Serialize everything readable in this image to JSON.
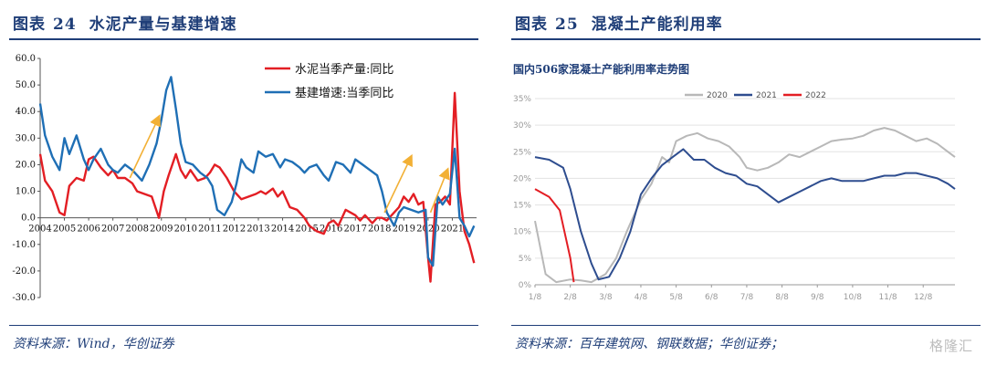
{
  "left_panel": {
    "figure_label": "图表",
    "figure_number": "24",
    "title": "水泥产量与基建增速",
    "source": "资料来源：Wind，华创证券"
  },
  "right_panel": {
    "figure_label": "图表",
    "figure_number": "25",
    "title": "混凝土产能利用率",
    "source": "资料来源：百年建筑网、钢联数据；华创证券；"
  },
  "watermark": "格隆汇",
  "colors": {
    "title_blue": "#1f3e78",
    "red": "#e31e24",
    "blue": "#1f6fb5",
    "gray": "#b8b8b8",
    "navy": "#2e4d8f",
    "arrow": "#f2b035"
  },
  "chart_data": [
    {
      "type": "line",
      "ylim": [
        -30,
        60
      ],
      "yticks": [
        "60.0",
        "50.0",
        "40.0",
        "30.0",
        "20.0",
        "10.0",
        "0.0",
        "-10.0",
        "-20.0",
        "-30.0"
      ],
      "xticks": [
        "2004",
        "2005",
        "2006",
        "2007",
        "2008",
        "2009",
        "2010",
        "2011",
        "2012",
        "2013",
        "2014",
        "2015",
        "2016",
        "2017",
        "2018",
        "2019",
        "2020",
        "2021"
      ],
      "xlim": [
        2004.0,
        2022.0
      ],
      "annotations": [
        "arrow-2008-2009",
        "arrow-2018-2019",
        "arrow-2020-2021"
      ],
      "legend_position": "top-right",
      "series": [
        {
          "name": "水泥当季产量:同比",
          "color": "#e31e24",
          "points": [
            [
              2004.0,
              24
            ],
            [
              2004.2,
              14
            ],
            [
              2004.5,
              10
            ],
            [
              2004.8,
              2
            ],
            [
              2005.0,
              1
            ],
            [
              2005.2,
              12
            ],
            [
              2005.5,
              15
            ],
            [
              2005.8,
              14
            ],
            [
              2006.0,
              22
            ],
            [
              2006.2,
              23
            ],
            [
              2006.5,
              19
            ],
            [
              2006.8,
              16
            ],
            [
              2007.0,
              18
            ],
            [
              2007.2,
              15
            ],
            [
              2007.5,
              15
            ],
            [
              2007.8,
              13
            ],
            [
              2008.0,
              10
            ],
            [
              2008.3,
              9
            ],
            [
              2008.6,
              8
            ],
            [
              2008.9,
              0
            ],
            [
              2009.1,
              10
            ],
            [
              2009.3,
              16
            ],
            [
              2009.6,
              24
            ],
            [
              2009.8,
              18
            ],
            [
              2010.0,
              15
            ],
            [
              2010.2,
              18
            ],
            [
              2010.5,
              14
            ],
            [
              2010.8,
              15
            ],
            [
              2011.0,
              17
            ],
            [
              2011.2,
              20
            ],
            [
              2011.4,
              19
            ],
            [
              2011.7,
              15
            ],
            [
              2012.0,
              10
            ],
            [
              2012.3,
              7
            ],
            [
              2012.6,
              8
            ],
            [
              2012.9,
              9
            ],
            [
              2013.1,
              10
            ],
            [
              2013.3,
              9
            ],
            [
              2013.6,
              11
            ],
            [
              2013.8,
              8
            ],
            [
              2014.0,
              10
            ],
            [
              2014.3,
              4
            ],
            [
              2014.6,
              3
            ],
            [
              2014.9,
              0
            ],
            [
              2015.1,
              -3
            ],
            [
              2015.4,
              -5
            ],
            [
              2015.7,
              -6
            ],
            [
              2015.9,
              -2
            ],
            [
              2016.1,
              -1
            ],
            [
              2016.3,
              -3
            ],
            [
              2016.6,
              3
            ],
            [
              2016.8,
              2
            ],
            [
              2017.0,
              1
            ],
            [
              2017.2,
              -1
            ],
            [
              2017.4,
              1
            ],
            [
              2017.7,
              -2
            ],
            [
              2017.9,
              0
            ],
            [
              2018.1,
              0
            ],
            [
              2018.3,
              -1
            ],
            [
              2018.6,
              2
            ],
            [
              2018.8,
              4
            ],
            [
              2019.0,
              8
            ],
            [
              2019.2,
              6
            ],
            [
              2019.4,
              9
            ],
            [
              2019.6,
              5
            ],
            [
              2019.8,
              6
            ],
            [
              2020.0,
              -15
            ],
            [
              2020.1,
              -24
            ],
            [
              2020.3,
              5
            ],
            [
              2020.5,
              6
            ],
            [
              2020.7,
              8
            ],
            [
              2020.9,
              5
            ],
            [
              2021.1,
              47
            ],
            [
              2021.3,
              10
            ],
            [
              2021.5,
              -5
            ],
            [
              2021.7,
              -10
            ],
            [
              2021.9,
              -17
            ]
          ]
        },
        {
          "name": "基建增速:当季同比",
          "color": "#1f6fb5",
          "points": [
            [
              2004.0,
              43
            ],
            [
              2004.2,
              31
            ],
            [
              2004.5,
              23
            ],
            [
              2004.8,
              18
            ],
            [
              2005.0,
              30
            ],
            [
              2005.2,
              24
            ],
            [
              2005.5,
              31
            ],
            [
              2005.8,
              22
            ],
            [
              2006.0,
              18
            ],
            [
              2006.2,
              22
            ],
            [
              2006.5,
              26
            ],
            [
              2006.8,
              20
            ],
            [
              2007.0,
              18
            ],
            [
              2007.2,
              17
            ],
            [
              2007.5,
              20
            ],
            [
              2007.8,
              18
            ],
            [
              2008.0,
              16
            ],
            [
              2008.2,
              14
            ],
            [
              2008.5,
              20
            ],
            [
              2008.8,
              28
            ],
            [
              2009.0,
              37
            ],
            [
              2009.2,
              48
            ],
            [
              2009.4,
              53
            ],
            [
              2009.6,
              41
            ],
            [
              2009.8,
              28
            ],
            [
              2010.0,
              21
            ],
            [
              2010.3,
              20
            ],
            [
              2010.6,
              17
            ],
            [
              2010.9,
              15
            ],
            [
              2011.1,
              12
            ],
            [
              2011.3,
              3
            ],
            [
              2011.6,
              1
            ],
            [
              2011.9,
              6
            ],
            [
              2012.1,
              13
            ],
            [
              2012.3,
              22
            ],
            [
              2012.5,
              19
            ],
            [
              2012.8,
              17
            ],
            [
              2013.0,
              25
            ],
            [
              2013.3,
              23
            ],
            [
              2013.6,
              24
            ],
            [
              2013.9,
              19
            ],
            [
              2014.1,
              22
            ],
            [
              2014.4,
              21
            ],
            [
              2014.7,
              19
            ],
            [
              2014.9,
              17
            ],
            [
              2015.1,
              19
            ],
            [
              2015.4,
              20
            ],
            [
              2015.7,
              16
            ],
            [
              2015.9,
              14
            ],
            [
              2016.2,
              21
            ],
            [
              2016.5,
              20
            ],
            [
              2016.8,
              17
            ],
            [
              2017.0,
              22
            ],
            [
              2017.3,
              20
            ],
            [
              2017.6,
              18
            ],
            [
              2017.9,
              16
            ],
            [
              2018.1,
              10
            ],
            [
              2018.3,
              2
            ],
            [
              2018.6,
              -3
            ],
            [
              2018.8,
              2
            ],
            [
              2019.0,
              4
            ],
            [
              2019.3,
              3
            ],
            [
              2019.6,
              2
            ],
            [
              2019.9,
              3
            ],
            [
              2020.0,
              -15
            ],
            [
              2020.2,
              -18
            ],
            [
              2020.4,
              8
            ],
            [
              2020.6,
              5
            ],
            [
              2020.9,
              9
            ],
            [
              2021.1,
              26
            ],
            [
              2021.3,
              0
            ],
            [
              2021.5,
              -3
            ],
            [
              2021.7,
              -7
            ],
            [
              2021.9,
              -3
            ]
          ]
        }
      ]
    },
    {
      "type": "line",
      "title": "国内506家混凝土产能利用率走势图",
      "ylim": [
        0,
        35
      ],
      "yticks": [
        "35%",
        "30%",
        "25%",
        "20%",
        "15%",
        "10%",
        "5%",
        "0%"
      ],
      "xticks": [
        "1/8",
        "2/8",
        "3/8",
        "4/8",
        "5/8",
        "6/8",
        "7/8",
        "8/8",
        "9/8",
        "10/8",
        "11/8",
        "12/8"
      ],
      "xlim": [
        1.0,
        12.9
      ],
      "legend_position": "top",
      "series": [
        {
          "name": "2020",
          "color": "#b8b8b8",
          "points": [
            [
              1.0,
              12
            ],
            [
              1.3,
              2
            ],
            [
              1.6,
              0.5
            ],
            [
              2.0,
              1
            ],
            [
              2.3,
              0.8
            ],
            [
              2.6,
              0.5
            ],
            [
              3.0,
              2
            ],
            [
              3.3,
              5
            ],
            [
              3.6,
              10
            ],
            [
              4.0,
              16
            ],
            [
              4.3,
              19
            ],
            [
              4.6,
              24
            ],
            [
              4.8,
              23
            ],
            [
              5.0,
              27
            ],
            [
              5.3,
              28
            ],
            [
              5.6,
              28.5
            ],
            [
              5.9,
              27.5
            ],
            [
              6.2,
              27
            ],
            [
              6.5,
              26
            ],
            [
              6.8,
              24
            ],
            [
              7.0,
              22
            ],
            [
              7.3,
              21.5
            ],
            [
              7.6,
              22
            ],
            [
              7.9,
              23
            ],
            [
              8.2,
              24.5
            ],
            [
              8.5,
              24
            ],
            [
              8.8,
              25
            ],
            [
              9.1,
              26
            ],
            [
              9.4,
              27
            ],
            [
              9.7,
              27.3
            ],
            [
              10.0,
              27.5
            ],
            [
              10.3,
              28
            ],
            [
              10.6,
              29
            ],
            [
              10.9,
              29.5
            ],
            [
              11.2,
              29
            ],
            [
              11.5,
              28
            ],
            [
              11.8,
              27
            ],
            [
              12.1,
              27.5
            ],
            [
              12.4,
              26.5
            ],
            [
              12.7,
              25
            ],
            [
              12.9,
              24
            ]
          ]
        },
        {
          "name": "2021",
          "color": "#2e4d8f",
          "points": [
            [
              1.0,
              24
            ],
            [
              1.4,
              23.5
            ],
            [
              1.8,
              22
            ],
            [
              2.0,
              18
            ],
            [
              2.3,
              10
            ],
            [
              2.6,
              4
            ],
            [
              2.8,
              1
            ],
            [
              3.1,
              1.5
            ],
            [
              3.4,
              5
            ],
            [
              3.7,
              10
            ],
            [
              4.0,
              17
            ],
            [
              4.3,
              20
            ],
            [
              4.6,
              22.5
            ],
            [
              4.9,
              24
            ],
            [
              5.2,
              25.5
            ],
            [
              5.5,
              23.5
            ],
            [
              5.8,
              23.5
            ],
            [
              6.1,
              22
            ],
            [
              6.4,
              21
            ],
            [
              6.7,
              20.5
            ],
            [
              7.0,
              19
            ],
            [
              7.3,
              18.5
            ],
            [
              7.6,
              17
            ],
            [
              7.9,
              15.5
            ],
            [
              8.2,
              16.5
            ],
            [
              8.5,
              17.5
            ],
            [
              8.8,
              18.5
            ],
            [
              9.1,
              19.5
            ],
            [
              9.4,
              20
            ],
            [
              9.7,
              19.5
            ],
            [
              10.0,
              19.5
            ],
            [
              10.3,
              19.5
            ],
            [
              10.6,
              20
            ],
            [
              10.9,
              20.5
            ],
            [
              11.2,
              20.5
            ],
            [
              11.5,
              21
            ],
            [
              11.8,
              21
            ],
            [
              12.1,
              20.5
            ],
            [
              12.4,
              20
            ],
            [
              12.7,
              19
            ],
            [
              12.9,
              18
            ]
          ]
        },
        {
          "name": "2022",
          "color": "#e31e24",
          "points": [
            [
              1.0,
              18
            ],
            [
              1.4,
              16.5
            ],
            [
              1.7,
              14
            ],
            [
              2.0,
              5
            ],
            [
              2.1,
              0.5
            ]
          ]
        }
      ]
    }
  ]
}
